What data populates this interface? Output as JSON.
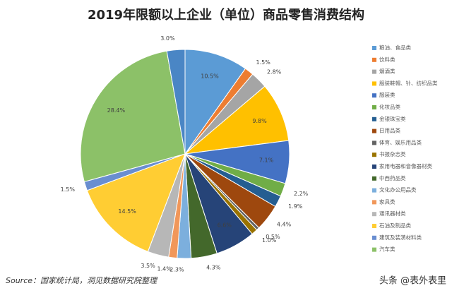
{
  "chart_data": {
    "type": "pie",
    "title": "2019年限额以上企业（单位）商品零售消费结构",
    "categories": [
      "粮油、食品类",
      "饮料类",
      "烟酒类",
      "服装鞋帽、针、纺织品类",
      "服装类",
      "化妆品类",
      "金银珠宝类",
      "日用品类",
      "体育、娱乐用品类",
      "书报杂志类",
      "家用电器和音像器材类",
      "中西药品类",
      "文化办公用品类",
      "家具类",
      "通讯器材类",
      "石油及制品类",
      "建筑及装潢材料类",
      "汽车类",
      null
    ],
    "values": [
      10.5,
      1.5,
      2.8,
      9.8,
      7.1,
      2.2,
      1.9,
      4.4,
      0.5,
      1.0,
      6.6,
      4.3,
      2.3,
      1.4,
      3.5,
      14.5,
      1.5,
      28.4,
      3.0
    ],
    "value_labels": [
      "10.5%",
      "1.5%",
      "2.8%",
      "9.8%",
      "7.1%",
      "2.2%",
      "1.9%",
      "4.4%",
      "0.5%",
      "1.0%",
      "6.6%",
      "4.3%",
      "2.3%",
      "1.4%",
      "3.5%",
      "14.5%",
      "1.5%",
      "28.4%",
      "3.0%"
    ],
    "colors": [
      "#5b9bd5",
      "#ed7d31",
      "#a5a5a5",
      "#ffc000",
      "#4472c4",
      "#70ad47",
      "#255e91",
      "#9e480e",
      "#636363",
      "#997300",
      "#264478",
      "#43682b",
      "#7cafdd",
      "#f1975a",
      "#b7b7b7",
      "#ffcd33",
      "#698ed0",
      "#8cc168",
      "#4a86c5"
    ],
    "legend": "right",
    "source": "Source：国家统计局，洞见数据研究院整理",
    "watermark": "头条 @表外表里"
  }
}
